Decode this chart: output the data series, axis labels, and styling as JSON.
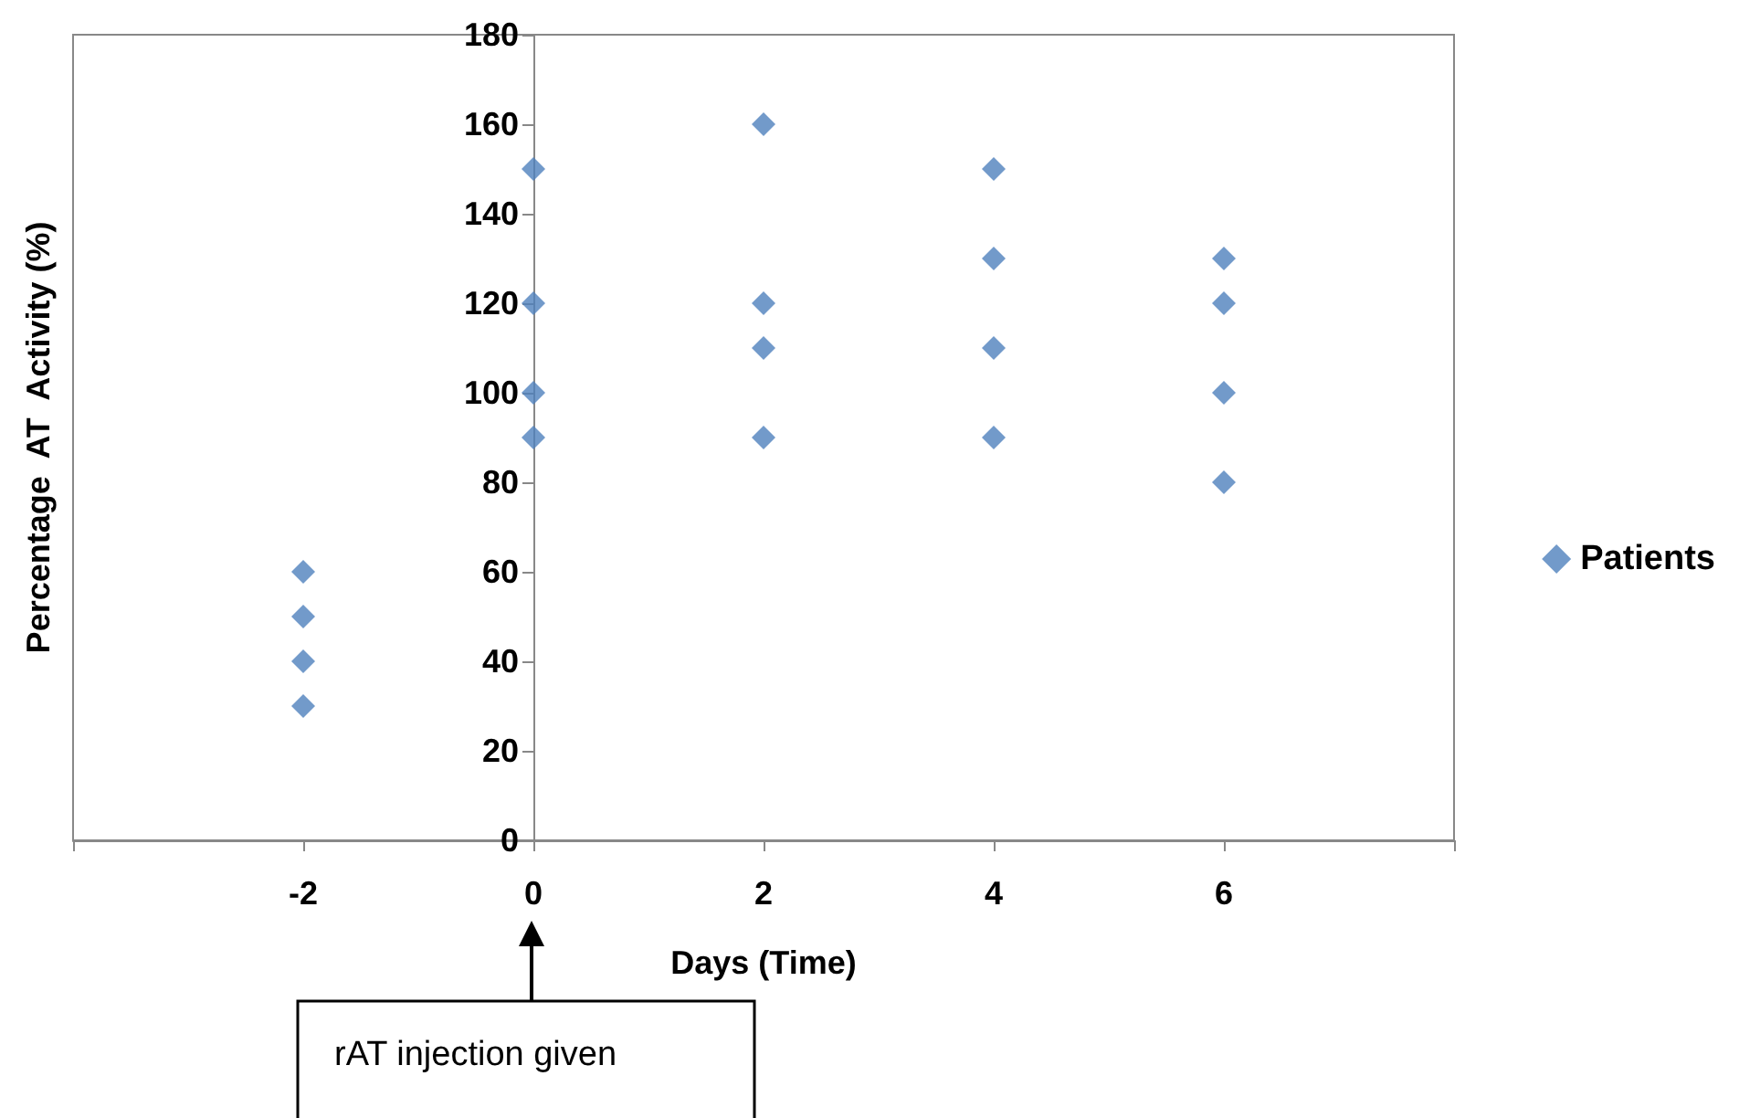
{
  "chart_data": {
    "type": "scatter",
    "xlabel": "Days (Time)",
    "ylabel": "Percentage  AT  Activity (%)",
    "series": [
      {
        "name": "Patients",
        "color": "#4f81bd",
        "x": [
          -2,
          -2,
          -2,
          -2,
          0,
          0,
          0,
          0,
          2,
          2,
          2,
          2,
          4,
          4,
          4,
          4,
          6,
          6,
          6,
          6
        ],
        "values": [
          60,
          50,
          40,
          30,
          150,
          120,
          100,
          90,
          160,
          120,
          110,
          90,
          150,
          130,
          110,
          90,
          130,
          120,
          100,
          80
        ]
      }
    ],
    "xlim": [
      -4,
      8
    ],
    "xticks": [
      {
        "value": -4,
        "label": null
      },
      -2,
      0,
      2,
      4,
      6,
      {
        "value": 8,
        "label": null
      }
    ],
    "ylim": [
      0,
      180
    ],
    "yticks": [
      0,
      20,
      40,
      60,
      80,
      100,
      120,
      140,
      160,
      180
    ],
    "annotations": [
      "rAT injection given"
    ],
    "marker": "diamond",
    "legend": "right",
    "grid": false
  }
}
